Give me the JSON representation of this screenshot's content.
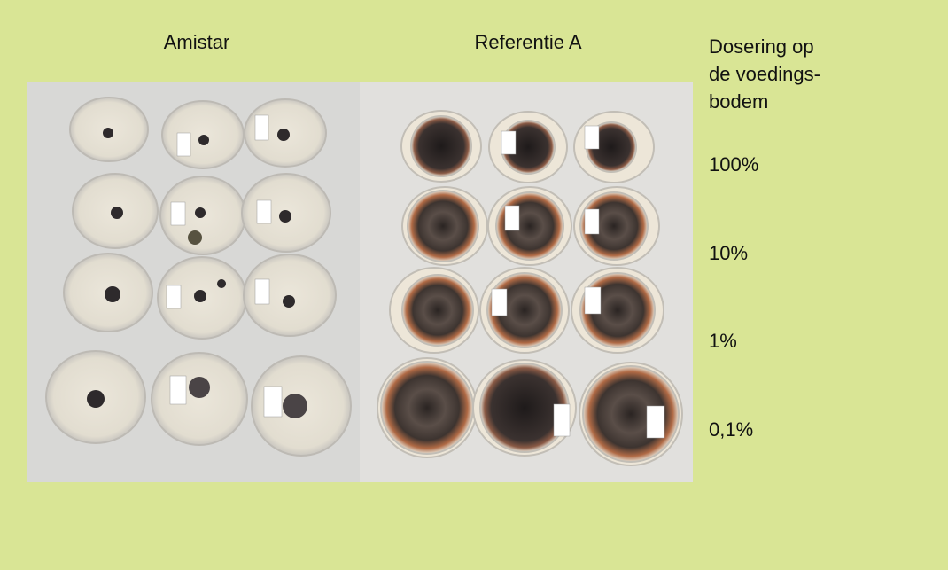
{
  "columns": [
    "Amistar",
    "Referentie A"
  ],
  "dose_heading": [
    "Dosering op",
    "de voedings-",
    "bodem"
  ],
  "doses": [
    "100%",
    "10%",
    "1%",
    "0,1%"
  ]
}
